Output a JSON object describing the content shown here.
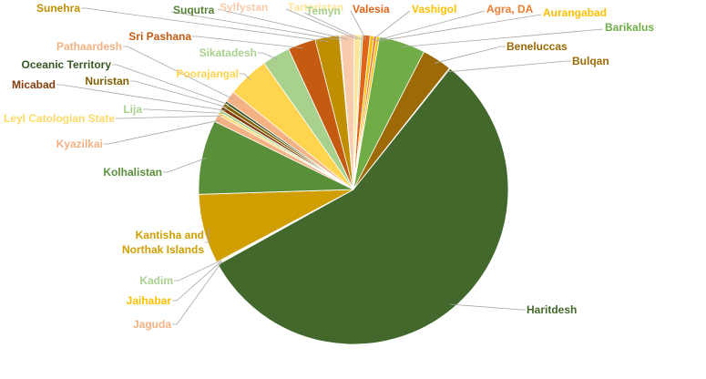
{
  "chart_data": {
    "type": "pie",
    "title": "",
    "legend": "none",
    "slices": [
      {
        "label": "Valesia",
        "value": 0.8,
        "color": "#E0641A"
      },
      {
        "label": "Vashigol",
        "value": 0.4,
        "color": "#FFC000"
      },
      {
        "label": "Agra, DA",
        "value": 0.3,
        "color": "#ED7D31"
      },
      {
        "label": "Aurangabad",
        "value": 0.3,
        "color": "#FFC000"
      },
      {
        "label": "Barikalus",
        "value": 5.0,
        "color": "#70AD47"
      },
      {
        "label": "Beneluccas",
        "value": 3.2,
        "color": "#9E6A05"
      },
      {
        "label": "Bulqan",
        "value": 0.1,
        "color": "#9E6A05"
      },
      {
        "label": "Haritdesh",
        "value": 58.0,
        "color": "#43682B"
      },
      {
        "label": "Jaguda",
        "value": 0.1,
        "color": "#F4B183"
      },
      {
        "label": "Jaihabar",
        "value": 0.1,
        "color": "#FFC000"
      },
      {
        "label": "Kadim",
        "value": 0.1,
        "color": "#A9D18E"
      },
      {
        "label": "Kantisha and Northak Islands",
        "value": 7.5,
        "color": "#D09E00"
      },
      {
        "label": "Kolhalistan",
        "value": 8.0,
        "color": "#5A8F3A"
      },
      {
        "label": "Kyazilkai",
        "value": 0.8,
        "color": "#F4B183"
      },
      {
        "label": "Leyl Catologian State",
        "value": 0.3,
        "color": "#FFD966"
      },
      {
        "label": "Lija",
        "value": 0.3,
        "color": "#A9D18E"
      },
      {
        "label": "Micabad",
        "value": 0.4,
        "color": "#843C0C"
      },
      {
        "label": "Nuristan",
        "value": 0.4,
        "color": "#7F6000"
      },
      {
        "label": "Oceanic Territory",
        "value": 0.3,
        "color": "#385723"
      },
      {
        "label": "Pathaardesh",
        "value": 1.2,
        "color": "#F4B183"
      },
      {
        "label": "Poorajangal",
        "value": 4.5,
        "color": "#FFD44F"
      },
      {
        "label": "Sikatadesh",
        "value": 3.0,
        "color": "#A9D18E"
      },
      {
        "label": "Sri Pashana",
        "value": 3.0,
        "color": "#C55A11"
      },
      {
        "label": "Sunehra",
        "value": 2.6,
        "color": "#BF8F00"
      },
      {
        "label": "Suqutra",
        "value": 0.1,
        "color": "#548235"
      },
      {
        "label": "Sylfystan",
        "value": 1.5,
        "color": "#F8CBAD"
      },
      {
        "label": "Tartaristan",
        "value": 0.7,
        "color": "#FFE699"
      },
      {
        "label": "Temyn",
        "value": 0.2,
        "color": "#A9D18E"
      }
    ]
  }
}
